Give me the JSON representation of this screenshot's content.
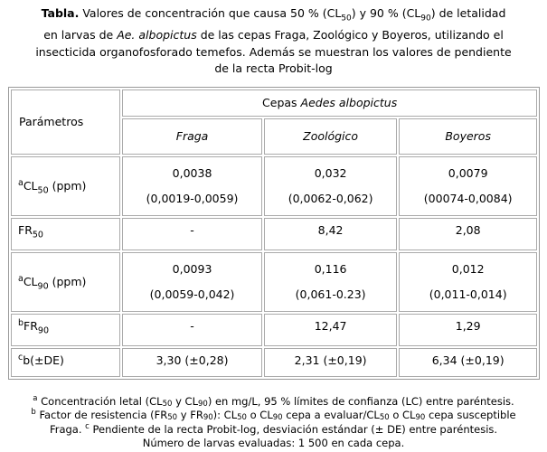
{
  "caption": {
    "label": "Tabla.",
    "line1_pre": " Valores de concentración que causa 50 % (CL",
    "line1_sub_50": "50",
    "line1_mid": ") y 90 % (CL",
    "line1_sub_90": "90",
    "line1_post": ") de letalidad",
    "line2_pre": "en larvas de ",
    "line2_species": "Ae. albopictus",
    "line2_post": " de las cepas Fraga, Zoológico y Boyeros, utilizando el",
    "line3": "insecticida organofosforado temefos. Además se muestran los valores de pendiente",
    "line4": "de la recta Probit-log"
  },
  "table": {
    "corner_label": "Parámetros",
    "group_header_prefix": "Cepas ",
    "group_header_species": "Aedes albopictus",
    "strains": [
      "Fraga",
      "Zoológico",
      "Boyeros"
    ],
    "rows": [
      {
        "label_sup": "a",
        "label_base": "CL",
        "label_sub": "50",
        "label_rest": " (ppm)",
        "cells": [
          {
            "value": "0,0038",
            "ci": "(0,0019-0,0059)"
          },
          {
            "value": "0,032",
            "ci": "(0,0062-0,062)"
          },
          {
            "value": "0,0079",
            "ci": "(00074-0,0084)"
          }
        ]
      },
      {
        "label_sup": "",
        "label_base": "FR",
        "label_sub": "50",
        "label_rest": "",
        "cells": [
          {
            "value": "-"
          },
          {
            "value": "8,42"
          },
          {
            "value": "2,08"
          }
        ]
      },
      {
        "label_sup": "a",
        "label_base": "CL",
        "label_sub": "90",
        "label_rest": " (ppm)",
        "cells": [
          {
            "value": "0,0093",
            "ci": "(0,0059-0,042)"
          },
          {
            "value": "0,116",
            "ci": "(0,061-0.23)"
          },
          {
            "value": "0,012",
            "ci": "(0,011-0,014)"
          }
        ]
      },
      {
        "label_sup": "b",
        "label_base": "FR",
        "label_sub": "90",
        "label_rest": "",
        "cells": [
          {
            "value": "-"
          },
          {
            "value": "12,47"
          },
          {
            "value": "1,29"
          }
        ]
      },
      {
        "label_sup": "c",
        "label_base": "b(±DE)",
        "label_sub": "",
        "label_rest": "",
        "cells": [
          {
            "value": "3,30 (±0,28)"
          },
          {
            "value": "2,31 (±0,19)"
          },
          {
            "value": "6,34 (±0,19)"
          }
        ]
      }
    ]
  },
  "footnotes": {
    "l1_sup": "a",
    "l1_a": " Concentración letal (CL",
    "l1_s1": "50",
    "l1_b": " y CL",
    "l1_s2": "90",
    "l1_c": ") en mg/L, 95 % límites de confianza (LC) entre paréntesis.",
    "l2_sup": "b",
    "l2_a": " Factor de resistencia (FR",
    "l2_s1": "50",
    "l2_b": " y FR",
    "l2_s2": "90",
    "l2_c": "): CL",
    "l2_s3": "50",
    "l2_d": " o CL",
    "l2_s4": "90",
    "l2_e": " cepa a evaluar/CL",
    "l2_s5": "50",
    "l2_f": " o CL",
    "l2_s6": "90",
    "l2_g": " cepa susceptible",
    "l3_a": "Fraga. ",
    "l3_sup": "c",
    "l3_b": " Pendiente de la recta Probit-log, desviación estándar (± DE) entre paréntesis.",
    "l4": "Número de larvas evaluadas: 1 500 en cada cepa."
  }
}
